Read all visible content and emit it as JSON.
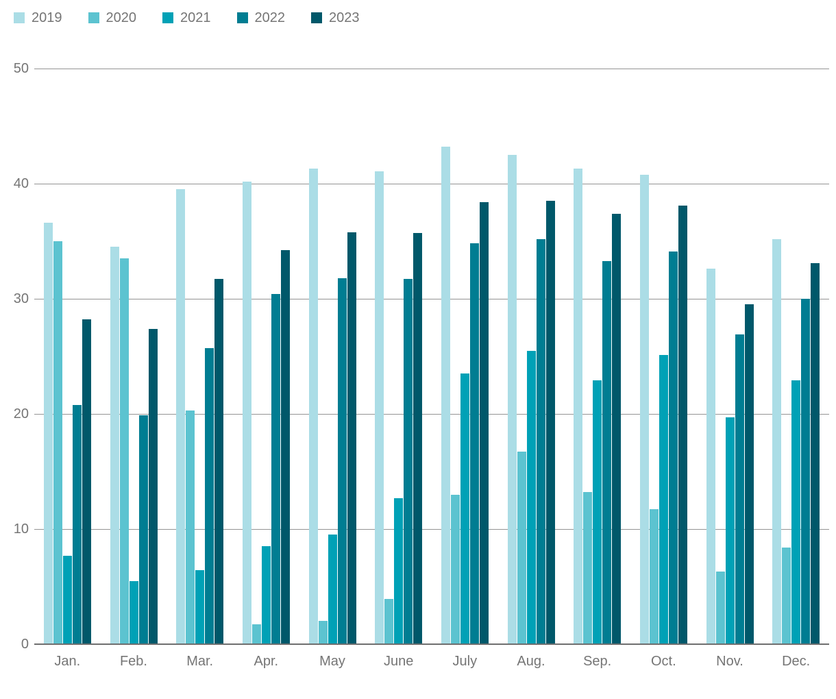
{
  "chart_data": {
    "type": "bar",
    "title": "",
    "xlabel": "",
    "ylabel": "",
    "categories": [
      "Jan.",
      "Feb.",
      "Mar.",
      "Apr.",
      "May",
      "June",
      "July",
      "Aug.",
      "Sep.",
      "Oct.",
      "Nov.",
      "Dec."
    ],
    "series": [
      {
        "name": "2019",
        "color": "#abdde6",
        "values": [
          36.6,
          34.5,
          39.5,
          40.2,
          41.3,
          41.1,
          43.2,
          42.5,
          41.3,
          40.8,
          32.6,
          35.2
        ]
      },
      {
        "name": "2020",
        "color": "#5cc3d0",
        "values": [
          35.0,
          33.5,
          20.3,
          1.7,
          2.0,
          3.9,
          13.0,
          16.7,
          13.2,
          11.7,
          6.3,
          8.4
        ]
      },
      {
        "name": "2021",
        "color": "#00a1b6",
        "values": [
          7.7,
          5.5,
          6.4,
          8.5,
          9.5,
          12.7,
          23.5,
          25.5,
          22.9,
          25.1,
          19.7,
          22.9
        ]
      },
      {
        "name": "2022",
        "color": "#007d92",
        "values": [
          20.8,
          19.9,
          25.7,
          30.4,
          31.8,
          31.7,
          34.8,
          35.2,
          33.3,
          34.1,
          26.9,
          30.0
        ]
      },
      {
        "name": "2023",
        "color": "#00586a",
        "values": [
          28.2,
          27.4,
          31.7,
          34.2,
          35.8,
          35.7,
          38.4,
          38.5,
          37.4,
          38.1,
          29.5,
          33.1
        ]
      }
    ],
    "ylim": [
      0,
      50
    ],
    "yticks": [
      0,
      10,
      20,
      30,
      40,
      50
    ],
    "grid": true,
    "legend_position": "top-left"
  },
  "colors": {
    "text": "#757575",
    "gridline": "#949494",
    "baseline": "#6f6f6f",
    "background": "#ffffff"
  }
}
